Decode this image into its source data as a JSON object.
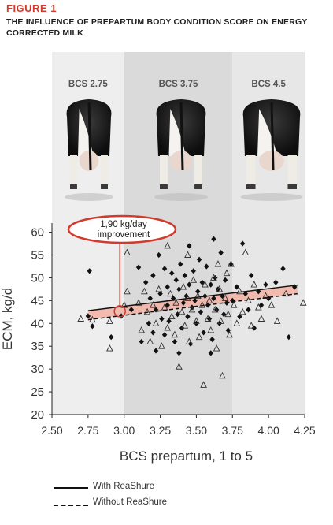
{
  "header": {
    "figure_label": "FIGURE 1",
    "title": "THE INFLUENCE OF PREPARTUM BODY CONDITION SCORE ON ENERGY CORRECTED MILK"
  },
  "colors": {
    "accent": "#d23a2e",
    "band_light": "#eeeeee",
    "band_dark": "#dadada",
    "band_right": "#e7e7e7",
    "ribbon": "#f2b2a4",
    "points": "#111111"
  },
  "chart_data": {
    "type": "scatter",
    "xlabel": "BCS prepartum, 1 to 5",
    "ylabel": "ECM, kg/d",
    "xlim": [
      2.5,
      4.25
    ],
    "ylim": [
      20,
      62
    ],
    "xticks": [
      "2.50",
      "2.75",
      "3.00",
      "3.25",
      "3.50",
      "3.75",
      "4.00",
      "4.25"
    ],
    "yticks": [
      "20",
      "25",
      "30",
      "35",
      "40",
      "45",
      "50",
      "55",
      "60"
    ],
    "bands": [
      {
        "label": "BCS 2.75",
        "from": 2.5,
        "to": 3.0
      },
      {
        "label": "BCS 3.75",
        "from": 3.0,
        "to": 3.75
      },
      {
        "label": "BCS 4.5",
        "from": 3.75,
        "to": 4.25
      }
    ],
    "annotation": {
      "text_line1": "1,90 kg/day",
      "text_line2": "improvement",
      "x": 2.97
    },
    "series": [
      {
        "name": "With ReaShure",
        "marker": "diamond",
        "fit": {
          "x": [
            2.75,
            4.2
          ],
          "y": [
            42.8,
            48.4
          ]
        },
        "points": [
          [
            2.76,
            51.5
          ],
          [
            2.78,
            39.4
          ],
          [
            2.75,
            41.6
          ],
          [
            2.91,
            37.0
          ],
          [
            2.98,
            41.6
          ],
          [
            3.05,
            43.0
          ],
          [
            3.1,
            52.3
          ],
          [
            3.12,
            36.0
          ],
          [
            3.15,
            49.0
          ],
          [
            3.17,
            40.0
          ],
          [
            3.18,
            45.5
          ],
          [
            3.2,
            50.5
          ],
          [
            3.2,
            38.0
          ],
          [
            3.22,
            43.0
          ],
          [
            3.24,
            55.0
          ],
          [
            3.25,
            46.5
          ],
          [
            3.26,
            41.0
          ],
          [
            3.28,
            52.0
          ],
          [
            3.28,
            37.5
          ],
          [
            3.3,
            48.0
          ],
          [
            3.3,
            44.0
          ],
          [
            3.31,
            40.5
          ],
          [
            3.33,
            51.0
          ],
          [
            3.34,
            45.5
          ],
          [
            3.35,
            36.0
          ],
          [
            3.36,
            49.5
          ],
          [
            3.37,
            42.0
          ],
          [
            3.38,
            47.5
          ],
          [
            3.39,
            53.0
          ],
          [
            3.4,
            39.0
          ],
          [
            3.41,
            44.5
          ],
          [
            3.42,
            50.5
          ],
          [
            3.43,
            46.0
          ],
          [
            3.44,
            41.5
          ],
          [
            3.45,
            57.0
          ],
          [
            3.45,
            48.5
          ],
          [
            3.46,
            35.5
          ],
          [
            3.47,
            43.5
          ],
          [
            3.48,
            51.5
          ],
          [
            3.49,
            45.0
          ],
          [
            3.5,
            40.0
          ],
          [
            3.51,
            47.0
          ],
          [
            3.52,
            54.0
          ],
          [
            3.53,
            42.5
          ],
          [
            3.54,
            49.0
          ],
          [
            3.55,
            38.0
          ],
          [
            3.56,
            46.0
          ],
          [
            3.57,
            52.5
          ],
          [
            3.58,
            44.0
          ],
          [
            3.59,
            41.0
          ],
          [
            3.6,
            48.5
          ],
          [
            3.61,
            36.5
          ],
          [
            3.62,
            58.5
          ],
          [
            3.62,
            45.5
          ],
          [
            3.63,
            50.0
          ],
          [
            3.64,
            43.0
          ],
          [
            3.65,
            47.5
          ],
          [
            3.66,
            40.0
          ],
          [
            3.67,
            55.5
          ],
          [
            3.68,
            46.0
          ],
          [
            3.69,
            42.0
          ],
          [
            3.7,
            49.5
          ],
          [
            3.71,
            44.5
          ],
          [
            3.72,
            38.5
          ],
          [
            3.74,
            53.0
          ],
          [
            3.75,
            45.0
          ],
          [
            3.78,
            48.0
          ],
          [
            3.8,
            41.5
          ],
          [
            3.82,
            57.5
          ],
          [
            3.84,
            46.5
          ],
          [
            3.86,
            43.0
          ],
          [
            3.88,
            50.5
          ],
          [
            3.9,
            39.0
          ],
          [
            3.93,
            47.0
          ],
          [
            3.95,
            44.0
          ],
          [
            3.98,
            48.5
          ],
          [
            4.0,
            45.5
          ],
          [
            4.05,
            49.0
          ],
          [
            4.1,
            52.0
          ],
          [
            4.14,
            37.0
          ],
          [
            4.18,
            48.0
          ],
          [
            3.22,
            34.0
          ],
          [
            3.38,
            33.5
          ],
          [
            3.6,
            33.5
          ]
        ]
      },
      {
        "name": "Without ReaShure",
        "marker": "triangle",
        "fit": {
          "x": [
            2.75,
            4.2
          ],
          "y": [
            40.8,
            46.5
          ]
        },
        "points": [
          [
            2.7,
            41.0
          ],
          [
            2.78,
            40.8
          ],
          [
            2.9,
            40.5
          ],
          [
            2.9,
            34.5
          ],
          [
            3.0,
            44.0
          ],
          [
            3.02,
            47.0
          ],
          [
            3.1,
            44.5
          ],
          [
            3.12,
            38.5
          ],
          [
            3.14,
            47.0
          ],
          [
            3.16,
            42.5
          ],
          [
            3.18,
            36.0
          ],
          [
            3.2,
            44.0
          ],
          [
            3.22,
            40.0
          ],
          [
            3.24,
            47.5
          ],
          [
            3.26,
            35.0
          ],
          [
            3.28,
            43.5
          ],
          [
            3.3,
            39.0
          ],
          [
            3.32,
            46.5
          ],
          [
            3.33,
            41.5
          ],
          [
            3.35,
            37.5
          ],
          [
            3.36,
            44.5
          ],
          [
            3.38,
            30.5
          ],
          [
            3.4,
            42.5
          ],
          [
            3.41,
            48.0
          ],
          [
            3.42,
            39.5
          ],
          [
            3.44,
            45.5
          ],
          [
            3.45,
            36.0
          ],
          [
            3.47,
            43.0
          ],
          [
            3.48,
            49.5
          ],
          [
            3.5,
            40.5
          ],
          [
            3.51,
            46.0
          ],
          [
            3.52,
            37.0
          ],
          [
            3.54,
            44.0
          ],
          [
            3.55,
            26.5
          ],
          [
            3.56,
            48.5
          ],
          [
            3.58,
            41.0
          ],
          [
            3.59,
            45.0
          ],
          [
            3.6,
            38.5
          ],
          [
            3.62,
            50.0
          ],
          [
            3.63,
            43.0
          ],
          [
            3.64,
            34.5
          ],
          [
            3.66,
            47.5
          ],
          [
            3.67,
            40.5
          ],
          [
            3.68,
            28.5
          ],
          [
            3.7,
            45.5
          ],
          [
            3.71,
            51.0
          ],
          [
            3.72,
            42.0
          ],
          [
            3.73,
            37.5
          ],
          [
            3.74,
            53.0
          ],
          [
            3.76,
            44.0
          ],
          [
            3.78,
            40.0
          ],
          [
            3.8,
            47.0
          ],
          [
            3.82,
            42.5
          ],
          [
            3.84,
            55.5
          ],
          [
            3.86,
            45.0
          ],
          [
            3.88,
            39.5
          ],
          [
            3.9,
            48.5
          ],
          [
            3.93,
            43.5
          ],
          [
            3.95,
            41.0
          ],
          [
            3.98,
            46.0
          ],
          [
            4.02,
            44.0
          ],
          [
            4.06,
            40.5
          ],
          [
            4.12,
            46.5
          ],
          [
            4.24,
            44.5
          ],
          [
            3.3,
            57.0
          ],
          [
            3.44,
            55.0
          ],
          [
            3.02,
            55.5
          ],
          [
            3.65,
            53.0
          ]
        ]
      }
    ]
  },
  "legend": {
    "with_label": "With ReaShure",
    "without_label": "Without ReaShure"
  }
}
